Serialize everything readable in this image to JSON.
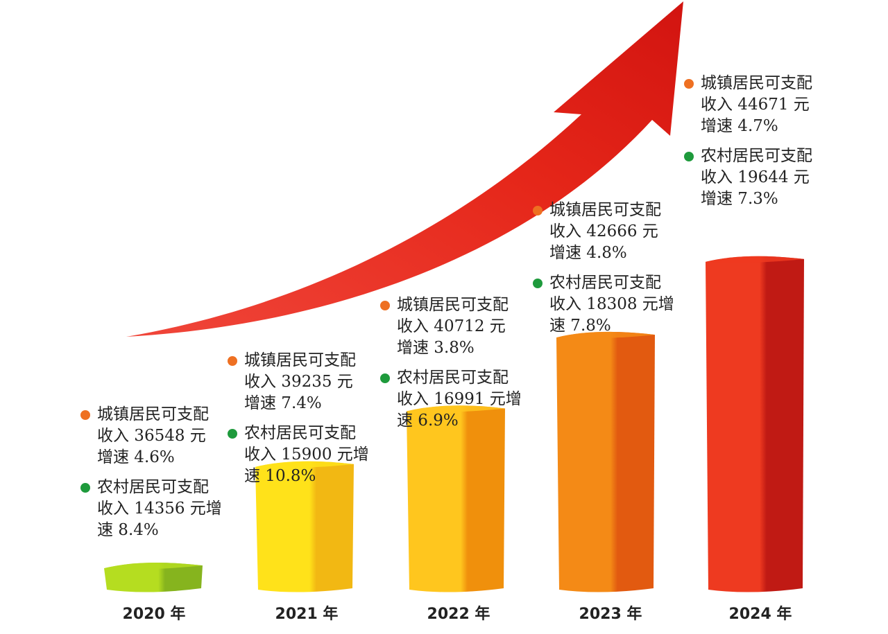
{
  "chart_data": {
    "type": "bar",
    "categories": [
      "2020 年",
      "2021 年",
      "2022 年",
      "2023 年",
      "2024 年"
    ],
    "bar_colors": [
      [
        "#b5dd20",
        "#86b41e"
      ],
      [
        "#ffe21a",
        "#f2b813"
      ],
      [
        "#ffc61e",
        "#f0900c"
      ],
      [
        "#f48a16",
        "#e25a10"
      ],
      [
        "#ee3a20",
        "#c01a14"
      ]
    ],
    "arrow_color": "#e52619",
    "dot_colors": {
      "urban": "#ee7022",
      "rural": "#1e9a3c"
    },
    "annotations": [
      {
        "urban": [
          "城镇居民可支配",
          "收入 36548 元",
          "增速 4.6%"
        ],
        "rural": [
          "农村居民可支配",
          "收入 14356 元增",
          "速 8.4%"
        ]
      },
      {
        "urban": [
          "城镇居民可支配",
          "收入 39235 元",
          "增速 7.4%"
        ],
        "rural": [
          " 农村居民可支配",
          "收入 15900 元增",
          "速 10.8%"
        ]
      },
      {
        "urban": [
          "城镇居民可支配",
          "收入 40712 元",
          "增速 3.8%"
        ],
        "rural": [
          "农村居民可支配",
          "收入 16991 元增",
          "速 6.9%"
        ]
      },
      {
        "urban": [
          "城镇居民可支配",
          "收入 42666 元",
          "增速 4.8%"
        ],
        "rural": [
          "农村居民可支配",
          "收入 18308 元增",
          "速 7.8%"
        ]
      },
      {
        "urban": [
          "城镇居民可支配",
          "收入 44671 元",
          "增速 4.7%"
        ],
        "rural": [
          "农村居民可支配",
          "收入 19644 元",
          "增速 7.3%"
        ]
      }
    ],
    "series": [
      {
        "name": "城镇居民可支配收入",
        "unit": "元",
        "values": [
          36548,
          39235,
          40712,
          42666,
          44671
        ],
        "growth_pct": [
          4.6,
          7.4,
          3.8,
          4.8,
          4.7
        ]
      },
      {
        "name": "农村居民可支配收入",
        "unit": "元",
        "values": [
          14356,
          15900,
          16991,
          18308,
          19644
        ],
        "growth_pct": [
          8.4,
          10.8,
          6.9,
          7.8,
          7.3
        ]
      }
    ]
  }
}
